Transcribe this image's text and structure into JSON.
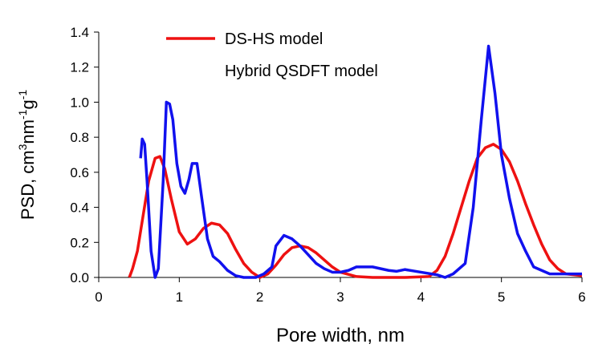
{
  "chart_data": {
    "type": "line",
    "xlabel": "Pore width, nm",
    "ylabel_parts": [
      {
        "text": "PSD, cm"
      },
      {
        "text": "3",
        "sup": true
      },
      {
        "text": "nm"
      },
      {
        "text": "-1",
        "sup": true
      },
      {
        "text": "g"
      },
      {
        "text": "-1",
        "sup": true
      }
    ],
    "xlim": [
      0,
      6
    ],
    "xticks": [
      0,
      1,
      2,
      3,
      4,
      5,
      6
    ],
    "ylim": [
      0,
      1.4
    ],
    "yticks": [
      {
        "value": 0,
        "label": "0.0"
      },
      {
        "value": 0.2,
        "label": "0.2"
      },
      {
        "value": 0.4,
        "label": "0.4"
      },
      {
        "value": 0.6,
        "label": "0.6"
      },
      {
        "value": 0.8,
        "label": "0.8"
      },
      {
        "value": 1,
        "label": "1.0"
      },
      {
        "value": 1.2,
        "label": "1.2"
      },
      {
        "value": 1.4,
        "label": "1.4"
      }
    ],
    "series": [
      {
        "name": "DS-HS model",
        "color": "#ee1111",
        "x": [
          0.38,
          0.42,
          0.48,
          0.55,
          0.62,
          0.7,
          0.76,
          0.82,
          0.9,
          1.0,
          1.1,
          1.2,
          1.3,
          1.4,
          1.5,
          1.6,
          1.7,
          1.8,
          1.9,
          2.0,
          2.1,
          2.2,
          2.3,
          2.4,
          2.5,
          2.6,
          2.7,
          2.8,
          2.9,
          3.0,
          3.2,
          3.4,
          3.8,
          4.1,
          4.2,
          4.3,
          4.4,
          4.5,
          4.6,
          4.7,
          4.8,
          4.9,
          5.0,
          5.1,
          5.2,
          5.3,
          5.4,
          5.5,
          5.6,
          5.7,
          5.8,
          6.0
        ],
        "values": [
          0,
          0.05,
          0.15,
          0.35,
          0.55,
          0.68,
          0.69,
          0.62,
          0.45,
          0.26,
          0.19,
          0.22,
          0.28,
          0.31,
          0.3,
          0.25,
          0.16,
          0.08,
          0.03,
          0,
          0.02,
          0.07,
          0.13,
          0.17,
          0.18,
          0.17,
          0.14,
          0.1,
          0.06,
          0.03,
          0.005,
          0,
          0,
          0.005,
          0.04,
          0.12,
          0.25,
          0.4,
          0.55,
          0.68,
          0.74,
          0.76,
          0.73,
          0.66,
          0.55,
          0.42,
          0.3,
          0.19,
          0.1,
          0.05,
          0.02,
          0.01
        ]
      },
      {
        "name": "Hybrid QSDFT model",
        "color": "#1111ee",
        "x": [
          0.52,
          0.54,
          0.57,
          0.6,
          0.65,
          0.7,
          0.74,
          0.8,
          0.84,
          0.88,
          0.92,
          0.97,
          1.02,
          1.07,
          1.12,
          1.16,
          1.22,
          1.28,
          1.35,
          1.42,
          1.5,
          1.6,
          1.7,
          1.8,
          1.95,
          2.05,
          2.15,
          2.2,
          2.3,
          2.4,
          2.5,
          2.6,
          2.7,
          2.8,
          2.9,
          3.0,
          3.1,
          3.2,
          3.4,
          3.6,
          3.7,
          3.8,
          4.0,
          4.2,
          4.3,
          4.4,
          4.55,
          4.65,
          4.75,
          4.84,
          4.92,
          5.0,
          5.1,
          5.2,
          5.3,
          5.4,
          5.6,
          6.0
        ],
        "values": [
          0.68,
          0.79,
          0.76,
          0.55,
          0.15,
          0,
          0.05,
          0.55,
          1.0,
          0.99,
          0.9,
          0.65,
          0.52,
          0.48,
          0.56,
          0.65,
          0.65,
          0.45,
          0.22,
          0.12,
          0.09,
          0.04,
          0.01,
          0,
          0,
          0.02,
          0.06,
          0.18,
          0.24,
          0.22,
          0.18,
          0.13,
          0.08,
          0.05,
          0.03,
          0.03,
          0.04,
          0.06,
          0.06,
          0.04,
          0.035,
          0.045,
          0.03,
          0.015,
          0,
          0.02,
          0.08,
          0.4,
          0.9,
          1.32,
          1.05,
          0.7,
          0.45,
          0.25,
          0.15,
          0.06,
          0.02,
          0.02
        ]
      }
    ]
  }
}
